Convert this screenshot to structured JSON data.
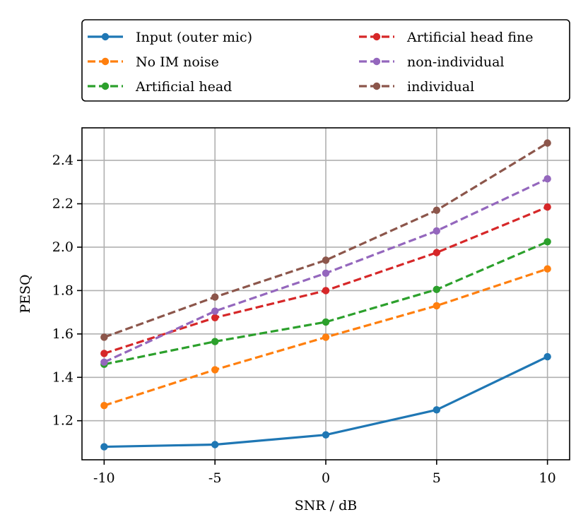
{
  "chart_data": {
    "type": "line",
    "title": "",
    "xlabel": "SNR / dB",
    "ylabel": "PESQ",
    "x": [
      -10,
      -5,
      0,
      5,
      10
    ],
    "x_tick_labels": [
      "-10",
      "-5",
      "0",
      "5",
      "10"
    ],
    "xlim": [
      -11,
      11
    ],
    "ylim": [
      1.02,
      2.55
    ],
    "y_ticks": [
      1.2,
      1.4,
      1.6,
      1.8,
      2.0,
      2.2,
      2.4
    ],
    "y_tick_labels": [
      "1.2",
      "1.4",
      "1.6",
      "1.8",
      "2.0",
      "2.2",
      "2.4"
    ],
    "grid": true,
    "legend_position": "top, outside plot, two columns",
    "series": [
      {
        "name": "Input (outer mic)",
        "color": "#1f77b4",
        "style": "solid",
        "values": [
          1.08,
          1.09,
          1.135,
          1.25,
          1.495
        ]
      },
      {
        "name": "No IM noise",
        "color": "#ff7f0e",
        "style": "dashed",
        "values": [
          1.27,
          1.435,
          1.585,
          1.73,
          1.9
        ]
      },
      {
        "name": "Artificial head",
        "color": "#2ca02c",
        "style": "dashed",
        "values": [
          1.46,
          1.565,
          1.655,
          1.805,
          2.025
        ]
      },
      {
        "name": "Artificial head fine",
        "color": "#d62728",
        "style": "dashed",
        "values": [
          1.51,
          1.675,
          1.8,
          1.975,
          2.185
        ]
      },
      {
        "name": "non-individual",
        "color": "#9467bd",
        "style": "dashed",
        "values": [
          1.47,
          1.705,
          1.88,
          2.075,
          2.315
        ]
      },
      {
        "name": "individual",
        "color": "#8c564b",
        "style": "dashed",
        "values": [
          1.585,
          1.77,
          1.94,
          2.17,
          2.48
        ]
      }
    ]
  }
}
